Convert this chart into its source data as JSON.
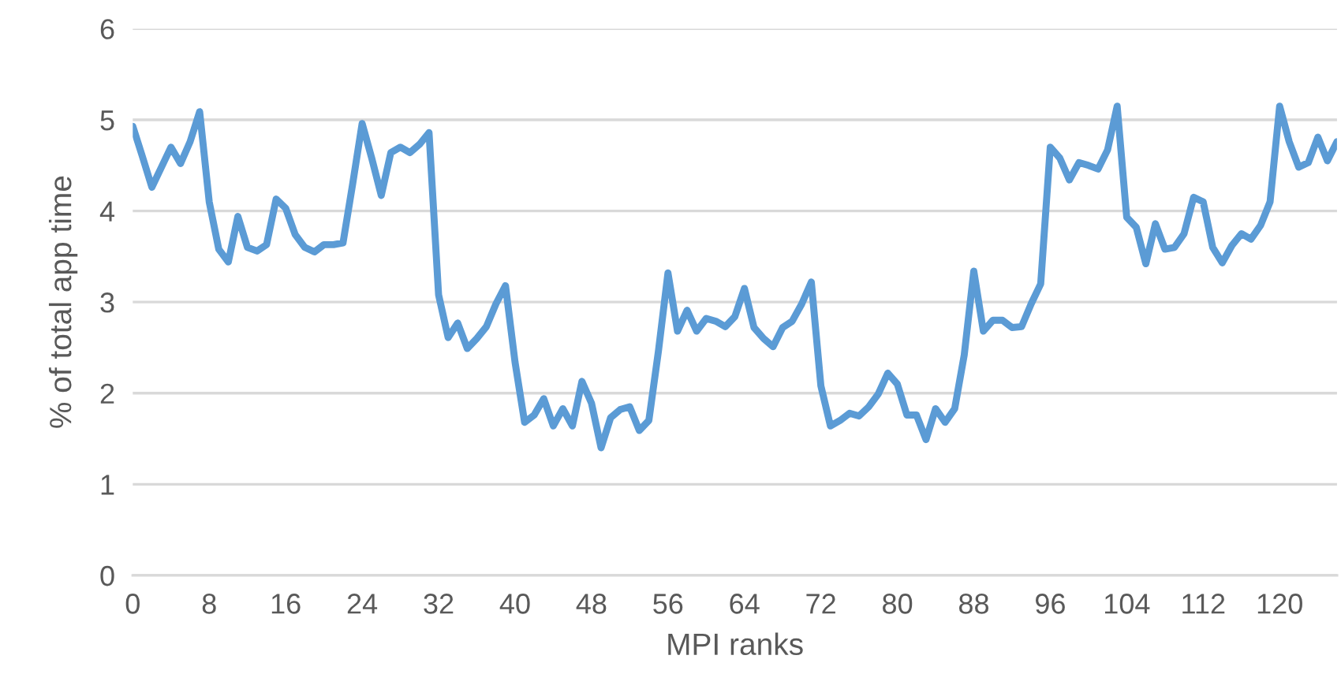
{
  "chart_data": {
    "type": "line",
    "xlabel": "MPI ranks",
    "ylabel": "% of total app time",
    "x": [
      0,
      1,
      2,
      3,
      4,
      5,
      6,
      7,
      8,
      9,
      10,
      11,
      12,
      13,
      14,
      15,
      16,
      17,
      18,
      19,
      20,
      21,
      22,
      23,
      24,
      25,
      26,
      27,
      28,
      29,
      30,
      31,
      32,
      33,
      34,
      35,
      36,
      37,
      38,
      39,
      40,
      41,
      42,
      43,
      44,
      45,
      46,
      47,
      48,
      49,
      50,
      51,
      52,
      53,
      54,
      55,
      56,
      57,
      58,
      59,
      60,
      61,
      62,
      63,
      64,
      65,
      66,
      67,
      68,
      69,
      70,
      71,
      72,
      73,
      74,
      75,
      76,
      77,
      78,
      79,
      80,
      81,
      82,
      83,
      84,
      85,
      86,
      87,
      88,
      89,
      90,
      91,
      92,
      93,
      94,
      95,
      96,
      97,
      98,
      99,
      100,
      101,
      102,
      103,
      104,
      105,
      106,
      107,
      108,
      109,
      110,
      111,
      112,
      113,
      114,
      115,
      116,
      117,
      118,
      119,
      120,
      121,
      122,
      123,
      124,
      125,
      126
    ],
    "series": [
      {
        "color": "#5b9bd5",
        "values": [
          4.93,
          4.6,
          4.26,
          4.48,
          4.7,
          4.52,
          4.76,
          5.09,
          4.1,
          3.58,
          3.44,
          3.94,
          3.6,
          3.56,
          3.63,
          4.13,
          4.03,
          3.74,
          3.6,
          3.55,
          3.63,
          3.63,
          3.65,
          4.29,
          4.96,
          4.58,
          4.17,
          4.64,
          4.7,
          4.64,
          4.73,
          4.86,
          3.08,
          2.61,
          2.77,
          2.49,
          2.6,
          2.73,
          2.98,
          3.18,
          2.34,
          1.68,
          1.76,
          1.94,
          1.64,
          1.83,
          1.64,
          2.13,
          1.89,
          1.4,
          1.73,
          1.82,
          1.85,
          1.59,
          1.7,
          2.46,
          3.32,
          2.68,
          2.91,
          2.68,
          2.82,
          2.79,
          2.73,
          2.84,
          3.15,
          2.72,
          2.6,
          2.51,
          2.72,
          2.79,
          2.98,
          3.22,
          2.08,
          1.64,
          1.7,
          1.78,
          1.75,
          1.85,
          1.99,
          2.22,
          2.1,
          1.76,
          1.76,
          1.49,
          1.83,
          1.68,
          1.83,
          2.42,
          3.34,
          2.68,
          2.8,
          2.8,
          2.72,
          2.73,
          2.98,
          3.2,
          4.7,
          4.58,
          4.34,
          4.53,
          4.5,
          4.46,
          4.67,
          5.15,
          3.93,
          3.82,
          3.42,
          3.86,
          3.58,
          3.6,
          3.75,
          4.15,
          4.1,
          3.6,
          3.43,
          3.62,
          3.75,
          3.69,
          3.84,
          4.1,
          5.15,
          4.76,
          4.48,
          4.53,
          4.81,
          4.55,
          4.76
        ]
      }
    ],
    "xlim": [
      0,
      126
    ],
    "xticks": [
      0,
      8,
      16,
      24,
      32,
      40,
      48,
      56,
      64,
      72,
      80,
      88,
      96,
      104,
      112,
      120
    ],
    "ylim": [
      0,
      6
    ],
    "yticks": [
      0,
      1,
      2,
      3,
      4,
      5,
      6
    ],
    "grid": "y",
    "marker": "none",
    "line_style": "solid"
  }
}
